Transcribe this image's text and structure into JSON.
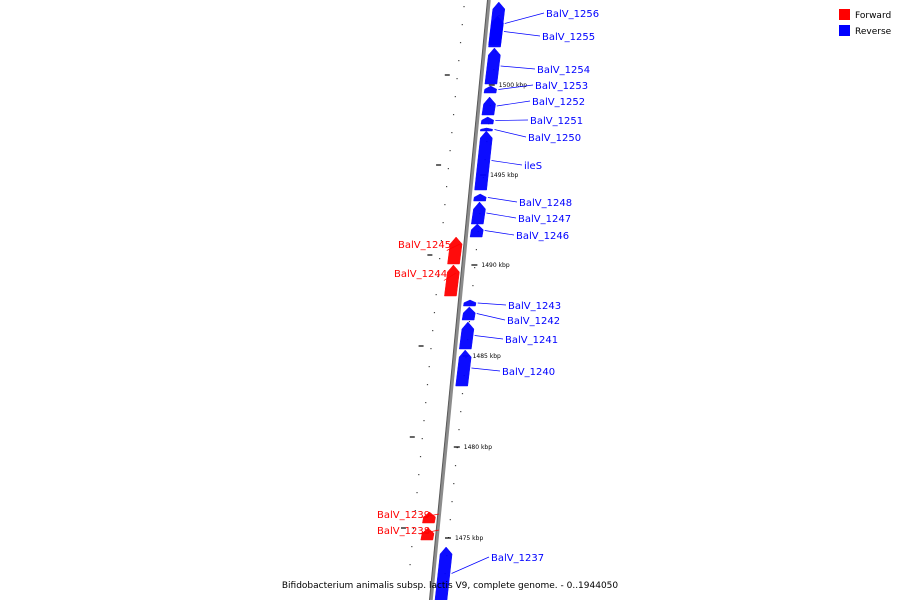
{
  "legend": [
    {
      "label": "Forward",
      "color": "#ff0000"
    },
    {
      "label": "Reverse",
      "color": "#0000ff"
    }
  ],
  "caption": "Bifidobacterium animalis subsp. lactis V9, complete genome. - 0..1944050",
  "genes": [
    {
      "name": "BalV_1256",
      "strand": "reverse"
    },
    {
      "name": "BalV_1255",
      "strand": "reverse"
    },
    {
      "name": "BalV_1254",
      "strand": "reverse"
    },
    {
      "name": "BalV_1253",
      "strand": "reverse"
    },
    {
      "name": "BalV_1252",
      "strand": "reverse"
    },
    {
      "name": "BalV_1251",
      "strand": "reverse"
    },
    {
      "name": "BalV_1250",
      "strand": "reverse"
    },
    {
      "name": "ileS",
      "strand": "reverse"
    },
    {
      "name": "BalV_1248",
      "strand": "reverse"
    },
    {
      "name": "BalV_1247",
      "strand": "reverse"
    },
    {
      "name": "BalV_1246",
      "strand": "reverse"
    },
    {
      "name": "BalV_1245",
      "strand": "forward"
    },
    {
      "name": "BalV_1244",
      "strand": "forward"
    },
    {
      "name": "BalV_1243",
      "strand": "reverse"
    },
    {
      "name": "BalV_1242",
      "strand": "reverse"
    },
    {
      "name": "BalV_1241",
      "strand": "reverse"
    },
    {
      "name": "BalV_1240",
      "strand": "reverse"
    },
    {
      "name": "BalV_1239",
      "strand": "forward"
    },
    {
      "name": "BalV_1238",
      "strand": "forward"
    },
    {
      "name": "BalV_1237",
      "strand": "reverse"
    }
  ],
  "ticks": [
    {
      "label": "1500 kbp"
    },
    {
      "label": "1495 kbp"
    },
    {
      "label": "1490 kbp"
    },
    {
      "label": "1485 kbp"
    },
    {
      "label": "1480 kbp"
    },
    {
      "label": "1475 kbp"
    }
  ]
}
